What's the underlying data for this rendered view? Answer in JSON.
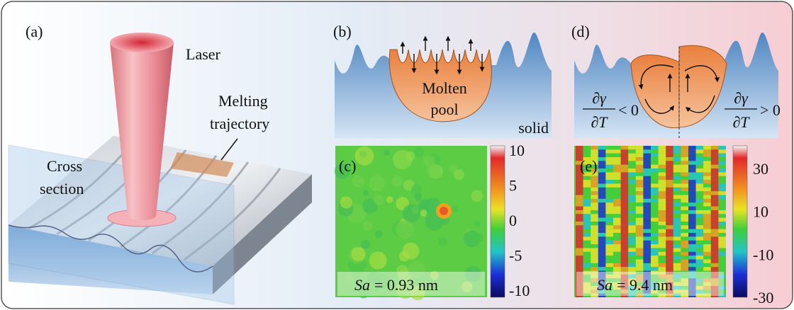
{
  "panels": {
    "a": {
      "label": "(a)",
      "laser": "Laser",
      "trajectory": [
        "Melting",
        "trajectory"
      ],
      "cross_section": [
        "Cross",
        "section"
      ]
    },
    "b": {
      "label": "(b)",
      "pool": [
        "Molten",
        "pool"
      ],
      "solid": "solid"
    },
    "c": {
      "label": "(c)",
      "colorbar_ticks": [
        "10",
        "5",
        "0",
        "-5",
        "-10"
      ],
      "roughness": {
        "symbol": "Sa",
        "value": "= 0.93 nm"
      }
    },
    "d": {
      "label": "(d)",
      "left": {
        "numerator": "∂γ",
        "denominator": "∂T",
        "relation": "< 0"
      },
      "right": {
        "numerator": "∂γ",
        "denominator": "∂T",
        "relation": "> 0"
      }
    },
    "e": {
      "label": "(e)",
      "colorbar_ticks": [
        "30",
        "10",
        "-10",
        "-30"
      ],
      "roughness": {
        "symbol": "Sa",
        "value": "= 9.4 nm"
      }
    }
  }
}
